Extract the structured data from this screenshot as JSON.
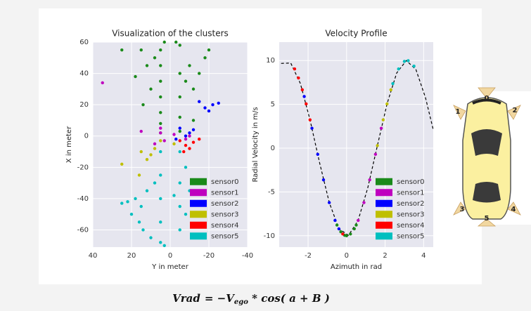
{
  "chart_data": [
    {
      "type": "scatter",
      "title": "Visualization of the clusters",
      "xlabel": "Y in meter",
      "ylabel": "X in meter",
      "xlim": [
        40,
        -40
      ],
      "ylim": [
        -71,
        60
      ],
      "xticks": [
        40,
        20,
        0,
        -20,
        -40
      ],
      "yticks": [
        60,
        40,
        20,
        0,
        -20,
        -40,
        -60
      ],
      "grid": true,
      "legend": "lower right",
      "series": [
        {
          "name": "sensor0",
          "color": "#1a8a1a",
          "x": [
            5,
            5,
            5,
            5,
            5,
            5,
            5,
            -5,
            -5,
            -5,
            -5,
            -5,
            15,
            12,
            18,
            10,
            14,
            8,
            -10,
            -12,
            -15,
            -18,
            -20,
            -8,
            25,
            -12,
            3,
            -3
          ],
          "y": [
            55,
            45,
            35,
            25,
            15,
            8,
            2,
            58,
            40,
            25,
            12,
            3,
            55,
            45,
            38,
            30,
            20,
            50,
            45,
            30,
            40,
            50,
            55,
            35,
            55,
            10,
            60,
            60
          ]
        },
        {
          "name": "sensor1",
          "color": "#bf00bf",
          "x": [
            35,
            15,
            5,
            3,
            -2,
            -8,
            -10,
            8,
            5
          ],
          "y": [
            34,
            3,
            2,
            -3,
            1,
            -2,
            0,
            -5,
            5
          ]
        },
        {
          "name": "sensor2",
          "color": "#0000ff",
          "x": [
            -22,
            -18,
            -25,
            -20,
            -15,
            -10,
            -5,
            -3,
            -8,
            -12
          ],
          "y": [
            20,
            18,
            21,
            16,
            22,
            2,
            5,
            -2,
            0,
            4
          ]
        },
        {
          "name": "sensor3",
          "color": "#bfbf00",
          "x": [
            25,
            15,
            10,
            12,
            5,
            8,
            16,
            -2
          ],
          "y": [
            -18,
            -10,
            -12,
            -15,
            -3,
            -8,
            -25,
            -5
          ]
        },
        {
          "name": "sensor4",
          "color": "#ff0000",
          "x": [
            -5,
            -8,
            -12,
            -15,
            -7,
            -10
          ],
          "y": [
            -3,
            -6,
            -4,
            -2,
            -10,
            -8
          ]
        },
        {
          "name": "sensor5",
          "color": "#00bfbf",
          "x": [
            5,
            5,
            5,
            5,
            5,
            -5,
            -5,
            -5,
            -5,
            -8,
            -8,
            12,
            15,
            18,
            20,
            14,
            10,
            22,
            25,
            16,
            -10,
            8,
            -2,
            3
          ],
          "y": [
            -10,
            -25,
            -40,
            -55,
            -68,
            -10,
            -30,
            -45,
            -60,
            -20,
            -50,
            -35,
            -45,
            -40,
            -50,
            -60,
            -65,
            -42,
            -43,
            -55,
            -35,
            -30,
            -38,
            -70
          ]
        }
      ]
    },
    {
      "type": "scatter",
      "title": "Velocity Profile",
      "xlabel": "Azimuth in rad",
      "ylabel": "Radial Velocity in m/s",
      "xlim": [
        -3.5,
        4.5
      ],
      "ylim": [
        -11.3,
        12.1
      ],
      "xticks": [
        -2,
        0,
        2,
        4
      ],
      "yticks": [
        -10,
        -5,
        0,
        5,
        10
      ],
      "grid": true,
      "legend": "lower right",
      "curve": {
        "color": "#000000",
        "x": [
          -3.4,
          -2.9,
          -2.4,
          -1.9,
          -1.4,
          -0.9,
          -0.4,
          0.1,
          0.6,
          1.1,
          1.6,
          2.1,
          2.6,
          3.1,
          3.6,
          4.1,
          4.5
        ],
        "y": [
          9.67,
          9.71,
          7.37,
          3.23,
          -1.7,
          -6.22,
          -9.21,
          -9.95,
          -8.25,
          -4.54,
          0.29,
          5.05,
          8.57,
          9.99,
          8.97,
          5.75,
          2.11
        ]
      },
      "series": [
        {
          "name": "sensor0",
          "color": "#1a8a1a",
          "x": [
            -0.5,
            -0.3,
            -0.1,
            0,
            0.2,
            0.4,
            0.5
          ],
          "y": [
            -8.78,
            -9.55,
            -9.95,
            -10,
            -9.8,
            -9.21,
            -8.78
          ]
        },
        {
          "name": "sensor1",
          "color": "#bf00bf",
          "x": [
            0.6,
            0.9,
            1.2,
            1.5,
            1.8
          ],
          "y": [
            -8.25,
            -6.22,
            -3.62,
            -0.71,
            2.27
          ]
        },
        {
          "name": "sensor2",
          "color": "#0000ff",
          "x": [
            -2.2,
            -1.8,
            -1.5,
            -1.2,
            -0.9,
            -0.6,
            -0.4
          ],
          "y": [
            5.89,
            2.27,
            -0.71,
            -3.62,
            -6.22,
            -8.25,
            -9.21
          ]
        },
        {
          "name": "sensor3",
          "color": "#bfbf00",
          "x": [
            1.6,
            1.9,
            2.1,
            2.3
          ],
          "y": [
            0.29,
            3.23,
            5.05,
            6.66
          ]
        },
        {
          "name": "sensor4",
          "color": "#ff0000",
          "x": [
            -2.7,
            -2.5,
            -2.3,
            -2.1,
            -1.9,
            -0.2
          ],
          "y": [
            9.04,
            8.01,
            6.66,
            5.05,
            3.23,
            -9.8
          ]
        },
        {
          "name": "sensor5",
          "color": "#00bfbf",
          "x": [
            2.4,
            2.7,
            3.0,
            3.2,
            3.5
          ],
          "y": [
            7.37,
            9.04,
            9.9,
            9.98,
            9.36
          ]
        }
      ]
    }
  ],
  "diagram": {
    "labels": [
      "0",
      "1",
      "2",
      "3",
      "4",
      "5"
    ]
  },
  "formula": {
    "lhs": "Vrad",
    "rhs_start": "= −V",
    "subscript": "ego",
    "rhs_end": " * cos( a + B )"
  }
}
